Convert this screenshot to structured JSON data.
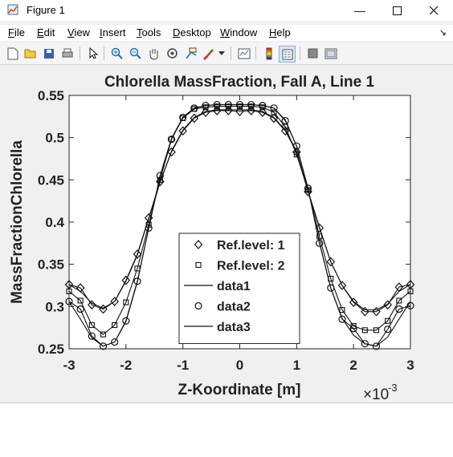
{
  "window": {
    "title": "Figure 1",
    "controls": [
      "minimize",
      "maximize",
      "close"
    ]
  },
  "menu": [
    {
      "label": "File",
      "key": "F"
    },
    {
      "label": "Edit",
      "key": "E"
    },
    {
      "label": "View",
      "key": "V"
    },
    {
      "label": "Insert",
      "key": "I"
    },
    {
      "label": "Tools",
      "key": "T"
    },
    {
      "label": "Desktop",
      "key": "D"
    },
    {
      "label": "Window",
      "key": "W"
    },
    {
      "label": "Help",
      "key": "H"
    }
  ],
  "toolbar": [
    "new-figure-icon",
    "open-folder-icon",
    "save-icon",
    "print-icon",
    "pointer-icon",
    "zoom-in-icon",
    "zoom-out-icon",
    "pan-hand-icon",
    "rotate-3d-icon",
    "data-cursor-icon",
    "brush-icon",
    "brush-dropdown-icon",
    "link-plot-icon",
    "colorbar-icon",
    "legend-icon",
    "hide-plot-tools-icon",
    "show-plot-tools-icon"
  ],
  "chart_data": {
    "type": "line",
    "title": "Chlorella MassFraction, Fall A, Line 1",
    "xlabel": "Z-Koordinate [m]",
    "ylabel": "MassFractionChlorella",
    "x_exponent": "×10",
    "x_exponent_power": "-3",
    "xlim": [
      -3,
      3
    ],
    "ylim": [
      0.25,
      0.55
    ],
    "xticks": [
      "-3",
      "-2",
      "-1",
      "0",
      "1",
      "2",
      "3"
    ],
    "yticks": [
      "0.25",
      "0.3",
      "0.35",
      "0.4",
      "0.45",
      "0.5",
      "0.55"
    ],
    "grid": false,
    "legend_position": "bottom-center",
    "series": [
      {
        "name": "Ref.level: 1",
        "marker": "diamond",
        "x": [
          -3,
          -2.8,
          -2.6,
          -2.4,
          -2.2,
          -2.0,
          -1.8,
          -1.6,
          -1.4,
          -1.2,
          -1.0,
          -0.8,
          -0.6,
          -0.4,
          -0.2,
          0,
          0.2,
          0.4,
          0.6,
          0.8,
          1.0,
          1.2,
          1.4,
          1.6,
          1.8,
          2.0,
          2.2,
          2.4,
          2.6,
          2.8,
          3
        ],
        "y": [
          0.326,
          0.322,
          0.302,
          0.297,
          0.306,
          0.331,
          0.362,
          0.405,
          0.448,
          0.483,
          0.508,
          0.523,
          0.53,
          0.532,
          0.532,
          0.531,
          0.532,
          0.53,
          0.523,
          0.508,
          0.483,
          0.436,
          0.393,
          0.353,
          0.325,
          0.305,
          0.294,
          0.294,
          0.302,
          0.323,
          0.326
        ]
      },
      {
        "name": "Ref.level: 2",
        "marker": "square",
        "x": [
          -3,
          -2.8,
          -2.6,
          -2.4,
          -2.2,
          -2.0,
          -1.8,
          -1.6,
          -1.4,
          -1.2,
          -1.0,
          -0.8,
          -0.6,
          -0.4,
          -0.2,
          0,
          0.2,
          0.4,
          0.6,
          0.8,
          1.0,
          1.2,
          1.4,
          1.6,
          1.8,
          2.0,
          2.2,
          2.4,
          2.6,
          2.8,
          3
        ],
        "y": [
          0.318,
          0.307,
          0.278,
          0.267,
          0.278,
          0.305,
          0.345,
          0.397,
          0.45,
          0.498,
          0.523,
          0.534,
          0.536,
          0.537,
          0.537,
          0.537,
          0.537,
          0.536,
          0.53,
          0.513,
          0.48,
          0.438,
          0.383,
          0.333,
          0.296,
          0.277,
          0.272,
          0.272,
          0.283,
          0.307,
          0.318
        ]
      },
      {
        "name": "data1",
        "marker": "none",
        "x": [
          -3,
          -2.8,
          -2.6,
          -2.4,
          -2.2,
          -2.0,
          -1.8,
          -1.6,
          -1.4,
          -1.2,
          -1.0,
          -0.8,
          -0.6,
          -0.4,
          -0.2,
          0,
          0.2,
          0.4,
          0.6,
          0.8,
          1.0,
          1.2,
          1.4,
          1.6,
          1.8,
          2.0,
          2.2,
          2.4,
          2.6,
          2.8,
          3
        ],
        "y": [
          0.326,
          0.318,
          0.304,
          0.298,
          0.306,
          0.33,
          0.361,
          0.404,
          0.447,
          0.484,
          0.509,
          0.524,
          0.531,
          0.533,
          0.533,
          0.533,
          0.533,
          0.531,
          0.524,
          0.509,
          0.484,
          0.437,
          0.394,
          0.353,
          0.325,
          0.306,
          0.296,
          0.296,
          0.303,
          0.318,
          0.326
        ]
      },
      {
        "name": "data2",
        "marker": "circle",
        "x": [
          -3,
          -2.8,
          -2.6,
          -2.4,
          -2.2,
          -2.0,
          -1.8,
          -1.6,
          -1.4,
          -1.2,
          -1.0,
          -0.8,
          -0.6,
          -0.4,
          -0.2,
          0,
          0.2,
          0.4,
          0.6,
          0.8,
          1.0,
          1.2,
          1.4,
          1.6,
          1.8,
          2.0,
          2.2,
          2.4,
          2.6,
          2.8,
          3
        ],
        "y": [
          0.306,
          0.297,
          0.265,
          0.253,
          0.258,
          0.283,
          0.33,
          0.393,
          0.455,
          0.498,
          0.524,
          0.535,
          0.538,
          0.539,
          0.539,
          0.539,
          0.539,
          0.538,
          0.535,
          0.52,
          0.49,
          0.44,
          0.375,
          0.322,
          0.285,
          0.274,
          0.256,
          0.253,
          0.273,
          0.297,
          0.301
        ]
      },
      {
        "name": "data3",
        "marker": "none",
        "x": [
          -3,
          -2.8,
          -2.6,
          -2.4,
          -2.2,
          -2.0,
          -1.8,
          -1.6,
          -1.4,
          -1.2,
          -1.0,
          -0.8,
          -0.6,
          -0.4,
          -0.2,
          0,
          0.2,
          0.4,
          0.6,
          0.8,
          1.0,
          1.2,
          1.4,
          1.6,
          1.8,
          2.0,
          2.2,
          2.4,
          2.6,
          2.8,
          3
        ],
        "y": [
          0.306,
          0.285,
          0.263,
          0.253,
          0.258,
          0.282,
          0.329,
          0.393,
          0.455,
          0.499,
          0.524,
          0.535,
          0.538,
          0.539,
          0.539,
          0.539,
          0.539,
          0.538,
          0.535,
          0.521,
          0.49,
          0.44,
          0.376,
          0.322,
          0.286,
          0.266,
          0.256,
          0.253,
          0.264,
          0.285,
          0.306
        ]
      }
    ]
  }
}
